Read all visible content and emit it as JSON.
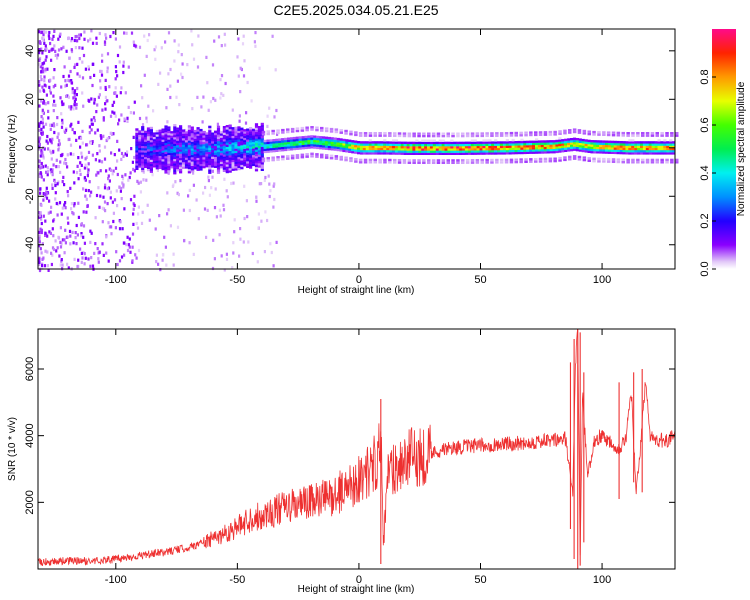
{
  "chart_data": [
    {
      "type": "heatmap",
      "title": "C2E5.2025.034.05.21.E25",
      "xlabel": "Height of straight line (km)",
      "ylabel": "Frequency (Hz)",
      "xlim": [
        -132,
        130
      ],
      "ylim": [
        -50,
        49
      ],
      "xticks": [
        -100,
        -50,
        0,
        50,
        100
      ],
      "yticks": [
        -40,
        -20,
        0,
        20,
        40
      ],
      "colorbar": {
        "label": "Normalized spectral amplitude",
        "range": [
          0,
          1
        ],
        "ticks": [
          "0.0",
          "0.2",
          "0.4",
          "0.6",
          "0.8"
        ]
      },
      "ridge": {
        "description_free": true,
        "x": [
          -92,
          -80,
          -60,
          -40,
          -30,
          -20,
          -10,
          0,
          10,
          20,
          40,
          60,
          80,
          88,
          95,
          110,
          130
        ],
        "center_hz": [
          0,
          0,
          0,
          1,
          2,
          3,
          2,
          0.5,
          0.5,
          0.3,
          0.3,
          0.5,
          1,
          2,
          1,
          0.5,
          0.5
        ],
        "amplitude": [
          0.25,
          0.3,
          0.35,
          0.45,
          0.55,
          0.6,
          0.65,
          0.85,
          0.9,
          0.95,
          0.98,
          0.95,
          0.9,
          0.8,
          0.85,
          0.9,
          0.9
        ]
      },
      "noise_region_x": [
        -132,
        -55
      ]
    },
    {
      "type": "line",
      "title": "",
      "xlabel": "Height of straight line (km)",
      "ylabel": "SNR (10 * v/v)",
      "xlim": [
        -132,
        130
      ],
      "ylim": [
        0,
        7200
      ],
      "xticks": [
        -100,
        -50,
        0,
        50,
        100
      ],
      "yticks": [
        2000,
        4000,
        6000
      ],
      "series_color": "#ee3030",
      "x": [
        -132,
        -120,
        -110,
        -100,
        -90,
        -80,
        -70,
        -60,
        -50,
        -45,
        -40,
        -30,
        -20,
        -10,
        0,
        5,
        8,
        9,
        10,
        12,
        15,
        20,
        30,
        40,
        50,
        60,
        70,
        80,
        85,
        88,
        89,
        90,
        91,
        92,
        94,
        97,
        100,
        104,
        107,
        110,
        112,
        114,
        116,
        118,
        120,
        125,
        130
      ],
      "values": [
        200,
        250,
        230,
        300,
        400,
        500,
        650,
        900,
        1250,
        1500,
        1600,
        1850,
        2000,
        2200,
        2700,
        3000,
        3400,
        4200,
        600,
        2900,
        3100,
        3300,
        3500,
        3650,
        3700,
        3750,
        3800,
        3850,
        3900,
        2200,
        6300,
        7100,
        400,
        5200,
        2800,
        3900,
        4000,
        3800,
        3600,
        4000,
        5300,
        2300,
        3800,
        5800,
        3900,
        3850,
        3950
      ],
      "spikes": [
        {
          "x": 9,
          "low": 150,
          "high": 5100
        },
        {
          "x": 87,
          "low": 1200,
          "high": 6200
        },
        {
          "x": 88.5,
          "low": 300,
          "high": 6900
        },
        {
          "x": 90,
          "low": 0,
          "high": 7200
        },
        {
          "x": 91,
          "low": 100,
          "high": 7100
        },
        {
          "x": 92.5,
          "low": 800,
          "high": 5900
        },
        {
          "x": 107,
          "low": 2100,
          "high": 5600
        },
        {
          "x": 113,
          "low": 2600,
          "high": 5900
        },
        {
          "x": 116.5,
          "low": 2300,
          "high": 6000
        }
      ]
    }
  ]
}
